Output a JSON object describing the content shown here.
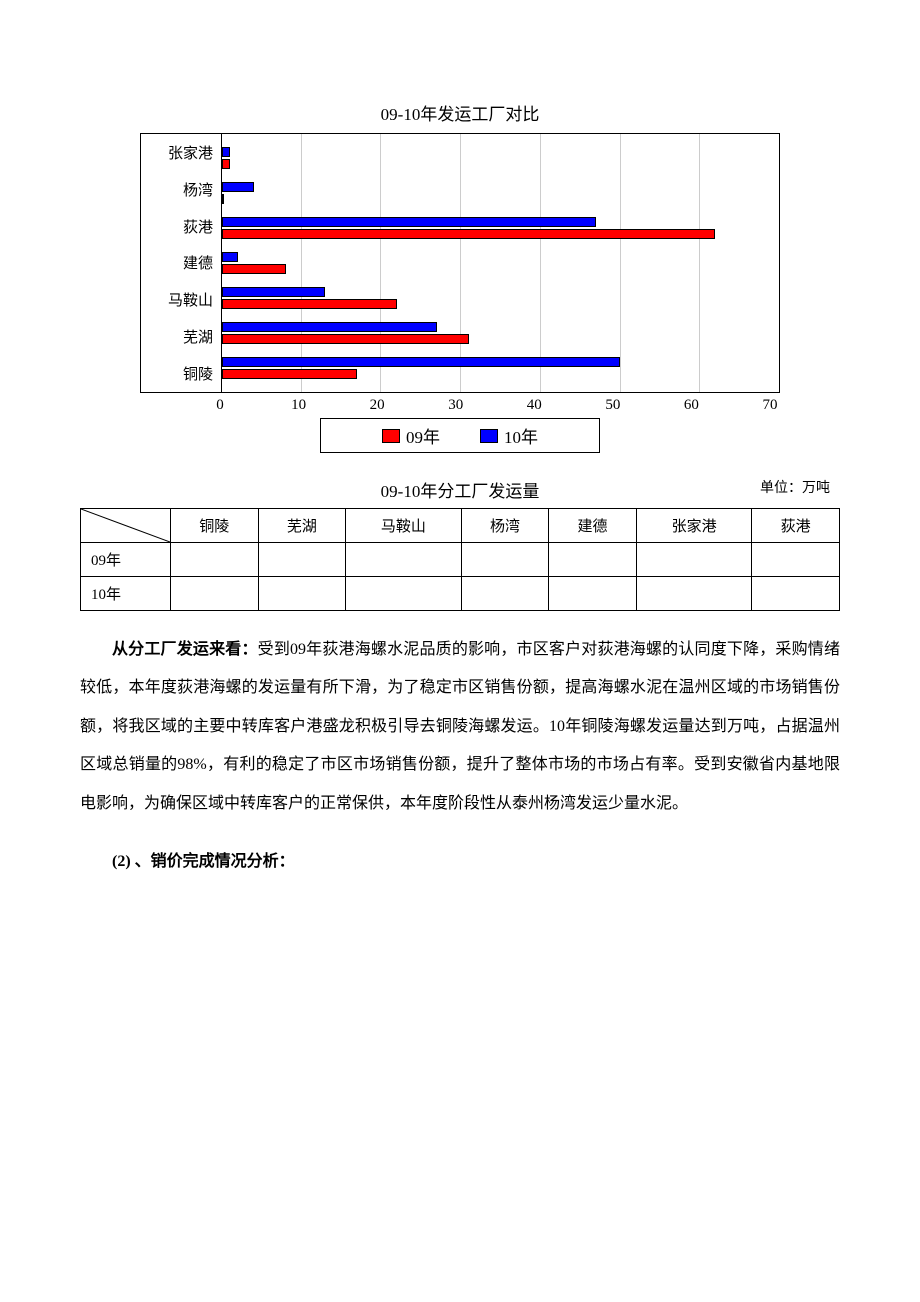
{
  "chart": {
    "type": "bar-horizontal-grouped",
    "title": "09-10年发运工厂对比",
    "categories": [
      "张家港",
      "杨湾",
      "荻港",
      "建德",
      "马鞍山",
      "芜湖",
      "铜陵"
    ],
    "series": [
      {
        "name": "10年",
        "color": "#0000ff",
        "values": [
          1,
          4,
          47,
          2,
          13,
          27,
          50
        ]
      },
      {
        "name": "09年",
        "color": "#ff0000",
        "values": [
          1,
          0,
          62,
          8,
          22,
          31,
          17
        ]
      }
    ],
    "xlim": [
      0,
      70
    ],
    "xtick_step": 10,
    "xticks": [
      "0",
      "10",
      "20",
      "30",
      "40",
      "50",
      "60",
      "70"
    ],
    "border_color": "#000000",
    "grid_color": "#cccccc",
    "background": "#ffffff",
    "label_fontsize": 15,
    "title_fontsize": 17,
    "legend": {
      "items": [
        {
          "label": "09年",
          "color": "#ff0000"
        },
        {
          "label": "10年",
          "color": "#0000ff"
        }
      ]
    }
  },
  "table": {
    "title": "09-10年分工厂发运量",
    "unit": "单位：万吨",
    "columns": [
      "铜陵",
      "芜湖",
      "马鞍山",
      "杨湾",
      "建德",
      "张家港",
      "荻港"
    ],
    "row_labels": [
      "09年",
      "10年"
    ],
    "rows": [
      [
        "",
        "",
        "",
        "",
        "",
        "",
        ""
      ],
      [
        "",
        "",
        "",
        "",
        "",
        "",
        ""
      ]
    ]
  },
  "paragraph": {
    "lead": "从分工厂发运来看：",
    "body": "受到09年荻港海螺水泥品质的影响，市区客户对荻港海螺的认同度下降，采购情绪较低，本年度荻港海螺的发运量有所下滑，为了稳定市区销售份额，提高海螺水泥在温州区域的市场销售份额，将我区域的主要中转库客户港盛龙积极引导去铜陵海螺发运。10年铜陵海螺发运量达到万吨，占据温州区域总销量的98%，有利的稳定了市区市场销售份额，提升了整体市场的市场占有率。受到安徽省内基地限电影响，为确保区域中转库客户的正常保供，本年度阶段性从泰州杨湾发运少量水泥。"
  },
  "section2": "(2) 、销价完成情况分析："
}
